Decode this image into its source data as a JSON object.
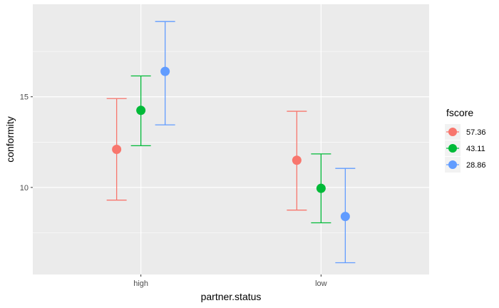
{
  "chart_data": {
    "type": "scatter",
    "title": "",
    "xlabel": "partner.status",
    "ylabel": "conformity",
    "categories": [
      "high",
      "low"
    ],
    "ylim": [
      5.2,
      20.1
    ],
    "yticks": [
      10,
      15
    ],
    "grid": true,
    "legend": {
      "title": "fscore",
      "placement": "right"
    },
    "series": [
      {
        "name": "57.36",
        "color": "#F8766D",
        "y": [
          12.1,
          11.5
        ],
        "lower": [
          9.3,
          8.75
        ],
        "upper": [
          14.9,
          14.2
        ]
      },
      {
        "name": "43.11",
        "color": "#00BA38",
        "y": [
          14.25,
          9.95
        ],
        "lower": [
          12.3,
          8.05
        ],
        "upper": [
          16.15,
          11.85
        ]
      },
      {
        "name": "28.86",
        "color": "#619CFF",
        "y": [
          16.4,
          8.4
        ],
        "lower": [
          13.45,
          5.85
        ],
        "upper": [
          19.15,
          11.05
        ]
      }
    ]
  }
}
